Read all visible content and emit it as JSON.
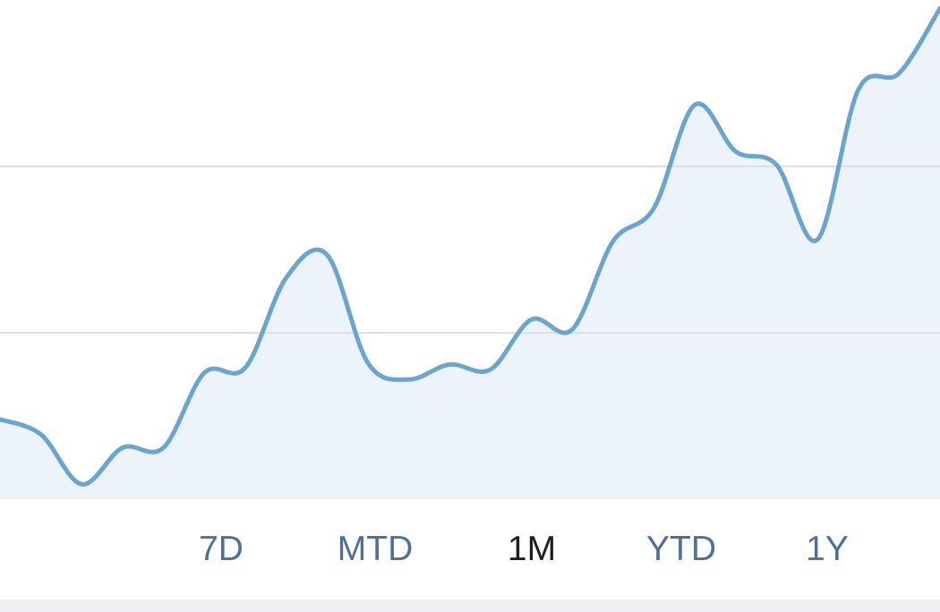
{
  "chart_data": {
    "type": "area",
    "values": [
      0.48,
      0.39,
      0.09,
      0.31,
      0.31,
      0.76,
      0.79,
      1.33,
      1.47,
      0.82,
      0.72,
      0.81,
      0.78,
      1.08,
      1.02,
      1.55,
      1.75,
      2.37,
      2.09,
      2.01,
      1.56,
      2.46,
      2.56,
      2.95
    ],
    "color": "#6aa5d0",
    "fill": "#edf3fa",
    "ylim": [
      0,
      3
    ],
    "yticks": [
      1,
      2
    ],
    "grid": true
  },
  "ranges": [
    "7D",
    "MTD",
    "1M",
    "YTD",
    "1Y"
  ],
  "selected_index": 2
}
